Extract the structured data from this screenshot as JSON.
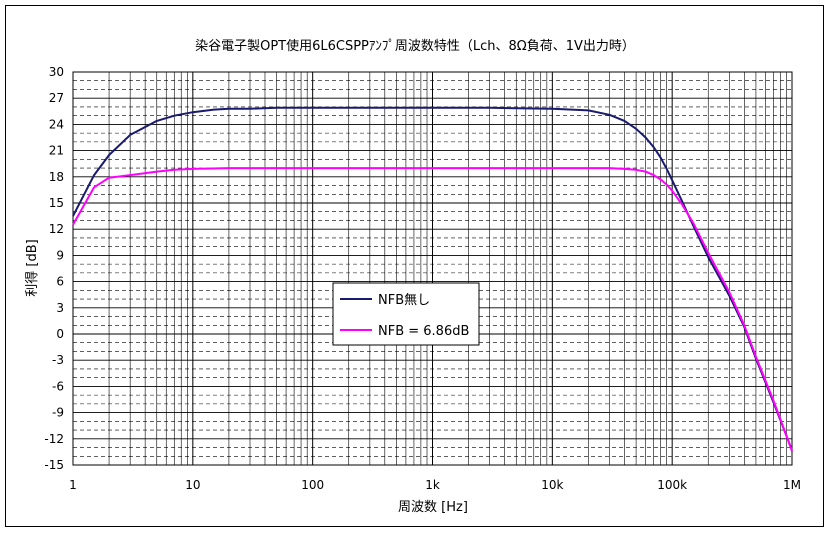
{
  "chart_data": {
    "type": "line",
    "title": "染谷電子製OPT使用6L6CSPPｱﾝﾌﾟ周波数特性（Lch、8Ω負荷、1V出力時）",
    "xlabel": "周波数 [Hz]",
    "ylabel": "利得 [dB]",
    "xscale": "log",
    "xlim": [
      1,
      1000000
    ],
    "ylim": [
      -15,
      30
    ],
    "x_tick_labels": [
      "1",
      "10",
      "100",
      "1k",
      "10k",
      "100k",
      "1M"
    ],
    "y_ticks": [
      30,
      27,
      24,
      21,
      18,
      15,
      12,
      9,
      6,
      3,
      0,
      -3,
      -6,
      -9,
      -12,
      -15
    ],
    "grid": true,
    "legend_position": "center-left",
    "series": [
      {
        "name": "NFB無し",
        "color": "#1a1a6e",
        "x": [
          1,
          1.5,
          2,
          3,
          5,
          7,
          10,
          15,
          20,
          30,
          50,
          100,
          300,
          1000,
          3000,
          10000,
          20000,
          30000,
          40000,
          50000,
          60000,
          70000,
          80000,
          90000,
          100000,
          120000,
          150000,
          200000,
          300000,
          400000,
          500000,
          700000,
          1000000
        ],
        "y": [
          13.5,
          18.2,
          20.5,
          22.8,
          24.4,
          25.0,
          25.4,
          25.7,
          25.8,
          25.8,
          25.9,
          25.9,
          25.9,
          25.9,
          25.9,
          25.8,
          25.6,
          25.1,
          24.4,
          23.5,
          22.5,
          21.4,
          20.2,
          18.9,
          17.6,
          15.3,
          12.4,
          8.8,
          4.4,
          0.8,
          -2.8,
          -7.8,
          -13.3
        ]
      },
      {
        "name": "NFB = 6.86dB",
        "color": "#ff00ff",
        "x": [
          1,
          1.5,
          2,
          3,
          5,
          7,
          10,
          20,
          50,
          100,
          1000,
          10000,
          30000,
          40000,
          50000,
          60000,
          70000,
          80000,
          90000,
          100000,
          120000,
          150000,
          200000,
          300000,
          400000,
          500000,
          700000,
          1000000
        ],
        "y": [
          12.5,
          16.8,
          17.9,
          18.2,
          18.6,
          18.8,
          18.9,
          19.0,
          19.0,
          19.0,
          19.0,
          19.0,
          19.0,
          18.9,
          18.8,
          18.6,
          18.2,
          17.7,
          17.1,
          16.4,
          14.9,
          12.7,
          9.3,
          4.8,
          1.0,
          -2.6,
          -7.6,
          -13.4
        ]
      }
    ]
  }
}
